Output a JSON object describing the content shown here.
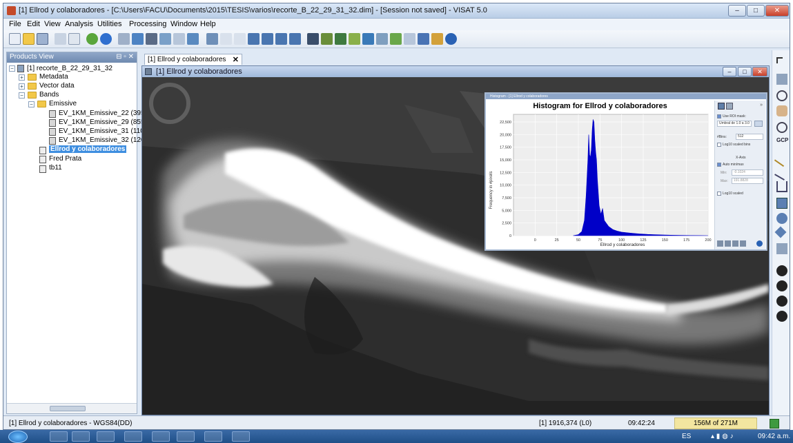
{
  "window": {
    "title": "[1] Ellrod y colaboradores - [C:\\Users\\FACU\\Documents\\2015\\TESIS\\varios\\recorte_B_22_29_31_32.dim] - [Session not saved] - VISAT 5.0",
    "minimize": "–",
    "maximize": "□",
    "close": "✕"
  },
  "menu": [
    "File",
    "Edit",
    "View",
    "Analysis",
    "Utilities",
    "Processing",
    "Window",
    "Help"
  ],
  "products_view": {
    "title": "Products View",
    "controls": "⊟ ▫ ✕",
    "tree": {
      "product": "[1] recorte_B_22_29_31_32",
      "metadata": "Metadata",
      "vector": "Vector data",
      "bands": "Bands",
      "emissive": "Emissive",
      "bands_list": [
        "EV_1KM_Emissive_22 (395",
        "EV_1KM_Emissive_29 (855",
        "EV_1KM_Emissive_31 (110",
        "EV_1KM_Emissive_32 (120"
      ],
      "virtual": [
        "Ellrod y colaboradores",
        "Fred Prata",
        "tb11"
      ]
    }
  },
  "doc_tab": {
    "label": "[1] Ellrod y colaboradores",
    "close": "✕"
  },
  "image_frame": {
    "title": "[1] Ellrod y colaboradores"
  },
  "histogram": {
    "window_title": "Histogram - [1] Ellrod y colaboradores",
    "heading": "Histogram for Ellrod y colaboradores",
    "use_roi": "Use ROI mask:",
    "roi_value": "Umbral de 1.0 a 3.0",
    "bins_label": "#Bins:",
    "bins_value": "512",
    "log_bins": "Log10 scaled bins",
    "xaxis": "X-Axis",
    "auto_minmax": "Auto min/max",
    "min_label": "Min:",
    "min_value": "-0.1024",
    "max_label": "Max:",
    "max_value": "191.8828",
    "log_scaled": "Log10 scaled"
  },
  "chart_data": {
    "type": "area",
    "title": "Histogram for Ellrod y colaboradores",
    "xlabel": "Ellrod y colaboradores",
    "ylabel": "Frequency in #pixels",
    "xlim": [
      -25,
      200
    ],
    "ylim": [
      0,
      24000
    ],
    "x_ticks": [
      "0",
      "25",
      "50",
      "75",
      "100",
      "125",
      "150",
      "175",
      "200"
    ],
    "y_ticks": [
      "0",
      "2,500",
      "5,000",
      "7,500",
      "10,000",
      "12,500",
      "15,000",
      "17,500",
      "20,000",
      "22,500"
    ],
    "series": [
      {
        "x": [
          44,
          50,
          54,
          57,
          59,
          61,
          62,
          63,
          64,
          65,
          66,
          67,
          68,
          69,
          70,
          71,
          72,
          74,
          76,
          78,
          80,
          85,
          90,
          95,
          100,
          110,
          120,
          130,
          140,
          150,
          160,
          180,
          200
        ],
        "y": [
          0,
          200,
          800,
          3000,
          8000,
          15000,
          20000,
          16000,
          15500,
          17000,
          21000,
          23000,
          22500,
          19000,
          16500,
          15000,
          11000,
          6000,
          4200,
          5400,
          3000,
          1800,
          1200,
          900,
          700,
          500,
          350,
          250,
          180,
          120,
          80,
          30,
          0
        ]
      }
    ],
    "color": "#0000c8"
  },
  "status": {
    "left": "[1] Ellrod y colaboradores - WGS84(DD)",
    "pos": "[1] 1916,374 (L0)",
    "time": "09:42:24",
    "mem": "156M of 271M"
  },
  "taskbar": {
    "lang": "ES",
    "clock": "09:42 a.m."
  }
}
